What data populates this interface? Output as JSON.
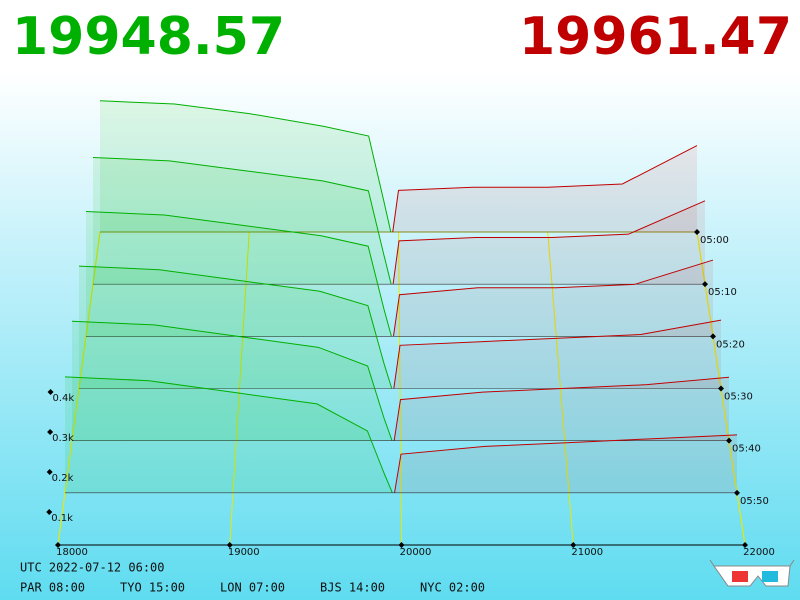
{
  "chart_data": {
    "type": "depth3d",
    "bid_price": "19948.57",
    "ask_price": "19961.47",
    "bid_color": "#00b000",
    "ask_color": "#c00000",
    "xlim": [
      18000,
      22000
    ],
    "xticks": [
      18000,
      19000,
      20000,
      21000,
      22000
    ],
    "ylim": [
      0,
      0.5
    ],
    "yticks": [
      {
        "value": 0.1,
        "label": "0.1k"
      },
      {
        "value": 0.2,
        "label": "0.2k"
      },
      {
        "value": 0.3,
        "label": "0.3k"
      },
      {
        "value": 0.4,
        "label": "0.4k"
      }
    ],
    "bid_x": [
      18000,
      18500,
      19000,
      19500,
      19800,
      19900,
      19948.57
    ],
    "ask_x": [
      19961.47,
      20000,
      20500,
      21000,
      21500,
      22000
    ],
    "snapshots": [
      {
        "time": "05:00",
        "bids": [
          0.41,
          0.4,
          0.37,
          0.33,
          0.3,
          0.1,
          0
        ],
        "asks": [
          0,
          0.13,
          0.14,
          0.14,
          0.15,
          0.27
        ]
      },
      {
        "time": "05:10",
        "bids": [
          0.38,
          0.37,
          0.34,
          0.31,
          0.28,
          0.09,
          0
        ],
        "asks": [
          0,
          0.13,
          0.14,
          0.14,
          0.15,
          0.25
        ]
      },
      {
        "time": "05:20",
        "bids": [
          0.36,
          0.35,
          0.32,
          0.29,
          0.26,
          0.08,
          0
        ],
        "asks": [
          0,
          0.12,
          0.14,
          0.14,
          0.15,
          0.22
        ]
      },
      {
        "time": "05:30",
        "bids": [
          0.34,
          0.33,
          0.3,
          0.27,
          0.23,
          0.07,
          0
        ],
        "asks": [
          0,
          0.12,
          0.13,
          0.14,
          0.15,
          0.19
        ]
      },
      {
        "time": "05:40",
        "bids": [
          0.32,
          0.31,
          0.28,
          0.25,
          0.2,
          0.06,
          0
        ],
        "asks": [
          0,
          0.11,
          0.13,
          0.14,
          0.15,
          0.17
        ]
      },
      {
        "time": "05:50",
        "bids": [
          0.3,
          0.29,
          0.26,
          0.23,
          0.16,
          0.05,
          0
        ],
        "asks": [
          0,
          0.1,
          0.12,
          0.13,
          0.14,
          0.15
        ]
      }
    ],
    "timestamp": "UTC 2022-07-12 06:00",
    "clocks": [
      "PAR 08:00",
      "TYO 15:00",
      "LON 07:00",
      "BJS 14:00",
      "NYC 02:00"
    ]
  }
}
